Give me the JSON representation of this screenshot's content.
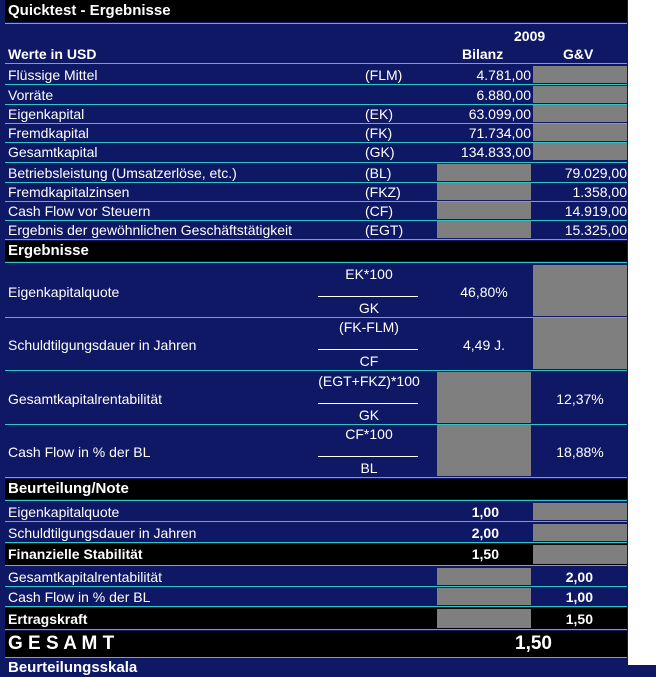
{
  "title": "Quicktest - Ergebnisse",
  "header": {
    "year": "2009",
    "currency_label": "Werte in USD",
    "col_bilanz": "Bilanz",
    "col_guv": "G&V"
  },
  "input_rows": [
    {
      "label": "Flüssige Mittel",
      "abbr": "(FLM)",
      "bilanz": "4.781,00",
      "guv": ""
    },
    {
      "label": "Vorräte",
      "abbr": "",
      "bilanz": "6.880,00",
      "guv": ""
    },
    {
      "label": "Eigenkapital",
      "abbr": "(EK)",
      "bilanz": "63.099,00",
      "guv": ""
    },
    {
      "label": "Fremdkapital",
      "abbr": "(FK)",
      "bilanz": "71.734,00",
      "guv": ""
    },
    {
      "label": "Gesamtkapital",
      "abbr": "(GK)",
      "bilanz": "134.833,00",
      "guv": ""
    },
    {
      "label": "Betriebsleistung (Umsatzerlöse, etc.)",
      "abbr": "(BL)",
      "bilanz": "",
      "guv": "79.029,00"
    },
    {
      "label": "Fremdkapitalzinsen",
      "abbr": "(FKZ)",
      "bilanz": "",
      "guv": "1.358,00"
    },
    {
      "label": "Cash Flow vor Steuern",
      "abbr": "(CF)",
      "bilanz": "",
      "guv": "14.919,00"
    },
    {
      "label": "Ergebnis der gewöhnlichen Geschäftstätigkeit",
      "abbr": "(EGT)",
      "bilanz": "",
      "guv": "15.325,00"
    }
  ],
  "results_title": "Ergebnisse",
  "results": [
    {
      "label": "Eigenkapitalquote",
      "numerator": "EK*100",
      "denominator": "GK",
      "bilanz": "46,80%",
      "guv": ""
    },
    {
      "label": "Schuldtilgungsdauer in Jahren",
      "numerator": "(FK-FLM)",
      "denominator": "CF",
      "bilanz": "4,49 J.",
      "guv": ""
    },
    {
      "label": "Gesamtkapitalrentabilität",
      "numerator": "(EGT+FKZ)*100",
      "denominator": "GK",
      "bilanz": "",
      "guv": "12,37%"
    },
    {
      "label": "Cash Flow in % der BL",
      "numerator": "CF*100",
      "denominator": "BL",
      "bilanz": "",
      "guv": "18,88%"
    }
  ],
  "rating_title": "Beurteilung/Note",
  "rating": {
    "ek_label": "Eigenkapitalquote",
    "ek_value": "1,00",
    "sd_label": "Schuldtilgungsdauer in Jahren",
    "sd_value": "2,00",
    "fs_label": "Finanzielle Stabilität",
    "fs_value": "1,50",
    "gk_label": "Gesamtkapitalrentabilität",
    "gk_value": "2,00",
    "cf_label": "Cash Flow in % der BL",
    "cf_value": "1,00",
    "ek2_label": "Ertragskraft",
    "ek2_value": "1,50",
    "total_label": "G E S A M T",
    "total_value": "1,50"
  },
  "cut_off_text": "Beurteilungsskala"
}
